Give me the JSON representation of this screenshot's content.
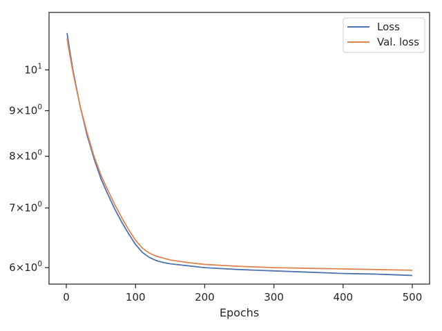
{
  "chart_data": {
    "type": "line",
    "title": "",
    "xlabel": "Epochs",
    "ylabel": "",
    "xlim": [
      -25,
      525
    ],
    "ylim": [
      5.75,
      11.6
    ],
    "yscale": "log",
    "grid": false,
    "legend_position": "top-right",
    "x_ticks": [
      0,
      100,
      200,
      300,
      400,
      500
    ],
    "x_tick_labels": [
      "0",
      "100",
      "200",
      "300",
      "400",
      "500"
    ],
    "y_ticks": [
      {
        "value": 10,
        "base": "10",
        "exp": "1"
      },
      {
        "value": 9,
        "base": "9×10",
        "exp": "0"
      },
      {
        "value": 8,
        "base": "8×10",
        "exp": "0"
      },
      {
        "value": 7,
        "base": "7×10",
        "exp": "0"
      },
      {
        "value": 6,
        "base": "6×10",
        "exp": "0"
      }
    ],
    "series": [
      {
        "name": "Loss",
        "color": "#4c72b0",
        "x": [
          1,
          5,
          10,
          20,
          30,
          40,
          50,
          60,
          70,
          80,
          90,
          100,
          110,
          120,
          130,
          140,
          150,
          175,
          200,
          250,
          300,
          350,
          400,
          450,
          500
        ],
        "y": [
          11.0,
          10.5,
          9.95,
          9.1,
          8.45,
          7.95,
          7.55,
          7.25,
          6.98,
          6.75,
          6.55,
          6.37,
          6.24,
          6.16,
          6.11,
          6.08,
          6.06,
          6.03,
          6.0,
          5.97,
          5.95,
          5.93,
          5.91,
          5.9,
          5.88
        ]
      },
      {
        "name": "Val. loss",
        "color": "#dd8452",
        "x": [
          1,
          5,
          10,
          20,
          30,
          40,
          50,
          60,
          70,
          80,
          90,
          100,
          110,
          120,
          130,
          140,
          150,
          175,
          200,
          250,
          300,
          350,
          400,
          450,
          500
        ],
        "y": [
          10.85,
          10.4,
          9.9,
          9.1,
          8.5,
          8.0,
          7.62,
          7.33,
          7.06,
          6.83,
          6.62,
          6.44,
          6.31,
          6.23,
          6.18,
          6.15,
          6.12,
          6.08,
          6.05,
          6.02,
          6.0,
          5.99,
          5.98,
          5.97,
          5.96
        ]
      }
    ]
  }
}
